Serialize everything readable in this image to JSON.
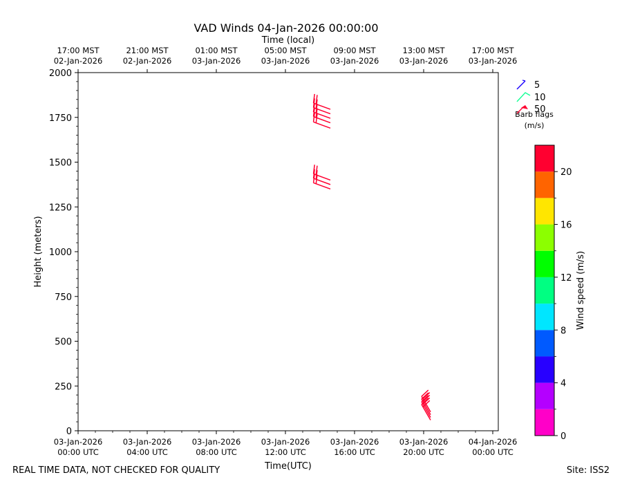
{
  "footer": {
    "left": "REAL TIME DATA, NOT CHECKED FOR QUALITY",
    "right": "Site: ISS2"
  },
  "chart_data": {
    "type": "wind_barbs",
    "title": "VAD Winds 04-Jan-2026 00:00:00",
    "top_axis_label": "Time (local)",
    "xlabel": "Time(UTC)",
    "ylabel": "Height (meters)",
    "xlim_hours": [
      0,
      24.3
    ],
    "ylim": [
      0,
      2000
    ],
    "x_ticks_utc": [
      {
        "hour": 0,
        "line1": "03-Jan-2026",
        "line2": "00:00 UTC"
      },
      {
        "hour": 4,
        "line1": "03-Jan-2026",
        "line2": "04:00 UTC"
      },
      {
        "hour": 8,
        "line1": "03-Jan-2026",
        "line2": "08:00 UTC"
      },
      {
        "hour": 12,
        "line1": "03-Jan-2026",
        "line2": "12:00 UTC"
      },
      {
        "hour": 16,
        "line1": "03-Jan-2026",
        "line2": "16:00 UTC"
      },
      {
        "hour": 20,
        "line1": "03-Jan-2026",
        "line2": "20:00 UTC"
      },
      {
        "hour": 24,
        "line1": "04-Jan-2026",
        "line2": "00:00 UTC"
      }
    ],
    "x_ticks_local": [
      {
        "hour": 0,
        "line1": "17:00 MST",
        "line2": "02-Jan-2026"
      },
      {
        "hour": 4,
        "line1": "21:00 MST",
        "line2": "02-Jan-2026"
      },
      {
        "hour": 8,
        "line1": "01:00 MST",
        "line2": "03-Jan-2026"
      },
      {
        "hour": 12,
        "line1": "05:00 MST",
        "line2": "03-Jan-2026"
      },
      {
        "hour": 16,
        "line1": "09:00 MST",
        "line2": "03-Jan-2026"
      },
      {
        "hour": 20,
        "line1": "13:00 MST",
        "line2": "03-Jan-2026"
      },
      {
        "hour": 24,
        "line1": "17:00 MST",
        "line2": "03-Jan-2026"
      }
    ],
    "y_ticks": [
      0,
      250,
      500,
      750,
      1000,
      1250,
      1500,
      1750,
      2000
    ],
    "barbs": [
      {
        "hour": 14.6,
        "height": 1690,
        "speed_ms": 21,
        "dir_deg": 290
      },
      {
        "hour": 14.6,
        "height": 1720,
        "speed_ms": 21,
        "dir_deg": 290
      },
      {
        "hour": 14.6,
        "height": 1745,
        "speed_ms": 21,
        "dir_deg": 290
      },
      {
        "hour": 14.6,
        "height": 1770,
        "speed_ms": 21,
        "dir_deg": 290
      },
      {
        "hour": 14.6,
        "height": 1795,
        "speed_ms": 21,
        "dir_deg": 290
      },
      {
        "hour": 14.6,
        "height": 1350,
        "speed_ms": 21,
        "dir_deg": 290
      },
      {
        "hour": 14.6,
        "height": 1375,
        "speed_ms": 21,
        "dir_deg": 290
      },
      {
        "hour": 14.6,
        "height": 1400,
        "speed_ms": 21,
        "dir_deg": 290
      },
      {
        "hour": 20.4,
        "height": 60,
        "speed_ms": 21,
        "dir_deg": 330
      },
      {
        "hour": 20.4,
        "height": 75,
        "speed_ms": 21,
        "dir_deg": 330
      },
      {
        "hour": 20.4,
        "height": 90,
        "speed_ms": 21,
        "dir_deg": 330
      },
      {
        "hour": 20.4,
        "height": 105,
        "speed_ms": 21,
        "dir_deg": 330
      }
    ],
    "barb_legend": {
      "title_line1": "Barb flags",
      "title_line2": "(m/s)",
      "entries": [
        {
          "label": "5",
          "color": "#1a00ff"
        },
        {
          "label": "10",
          "color": "#14ff96"
        },
        {
          "label": "50",
          "color": "#ff0030"
        }
      ]
    },
    "colorbar": {
      "label": "Wind speed (m/s)",
      "range": [
        0,
        22
      ],
      "bins": [
        {
          "from": 0,
          "to": 2,
          "color": "#ff00c8"
        },
        {
          "from": 2,
          "to": 4,
          "color": "#b400ff"
        },
        {
          "from": 4,
          "to": 6,
          "color": "#2800ff"
        },
        {
          "from": 6,
          "to": 8,
          "color": "#005aff"
        },
        {
          "from": 8,
          "to": 10,
          "color": "#00e6ff"
        },
        {
          "from": 10,
          "to": 12,
          "color": "#00ff82"
        },
        {
          "from": 12,
          "to": 14,
          "color": "#00ff00"
        },
        {
          "from": 14,
          "to": 16,
          "color": "#8cff00"
        },
        {
          "from": 16,
          "to": 18,
          "color": "#ffe600"
        },
        {
          "from": 18,
          "to": 20,
          "color": "#ff6400"
        },
        {
          "from": 20,
          "to": 22,
          "color": "#ff0030"
        }
      ],
      "ticks": [
        0,
        4,
        8,
        12,
        16,
        20
      ]
    }
  }
}
